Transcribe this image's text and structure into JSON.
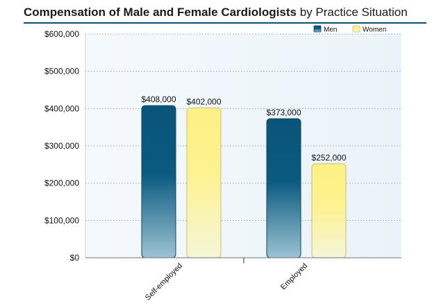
{
  "chart_data": {
    "type": "bar",
    "title": "Compensation of Male and Female Cardiologists",
    "subtitle": "by Practice Situation",
    "categories": [
      "Self-employed",
      "Employed"
    ],
    "series": [
      {
        "name": "Men",
        "values": [
          408000,
          373000
        ],
        "labels": [
          "$408,000",
          "$373,000"
        ],
        "color": "#0b5a80"
      },
      {
        "name": "Women",
        "values": [
          402000,
          252000
        ],
        "labels": [
          "$402,000",
          "$252,000"
        ],
        "color": "#fdf28e"
      }
    ],
    "yticks": [
      0,
      100000,
      200000,
      300000,
      400000,
      500000,
      600000
    ],
    "ytick_labels": [
      "$0",
      "$100,000",
      "$200,000",
      "$300,000",
      "$400,000",
      "$500,000",
      "$600,000"
    ],
    "ylim": [
      0,
      600000
    ],
    "grid": true,
    "legend_position": "top-right"
  }
}
